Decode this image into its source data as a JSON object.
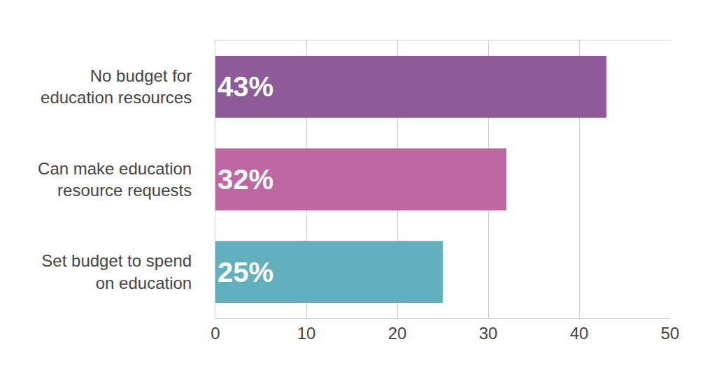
{
  "chart_data": {
    "type": "bar",
    "orientation": "horizontal",
    "categories": [
      "No budget for education resources",
      "Can make education resource requests",
      "Set budget to spend on education"
    ],
    "values": [
      43,
      32,
      25
    ],
    "value_labels": [
      "43%",
      "32%",
      "25%"
    ],
    "colors": [
      "#8c5b98",
      "#bd68a3",
      "#62afbd"
    ],
    "xlim": [
      0,
      50
    ],
    "xticks": [
      0,
      10,
      20,
      30,
      40,
      50
    ],
    "grid": true,
    "data_labels": true
  }
}
